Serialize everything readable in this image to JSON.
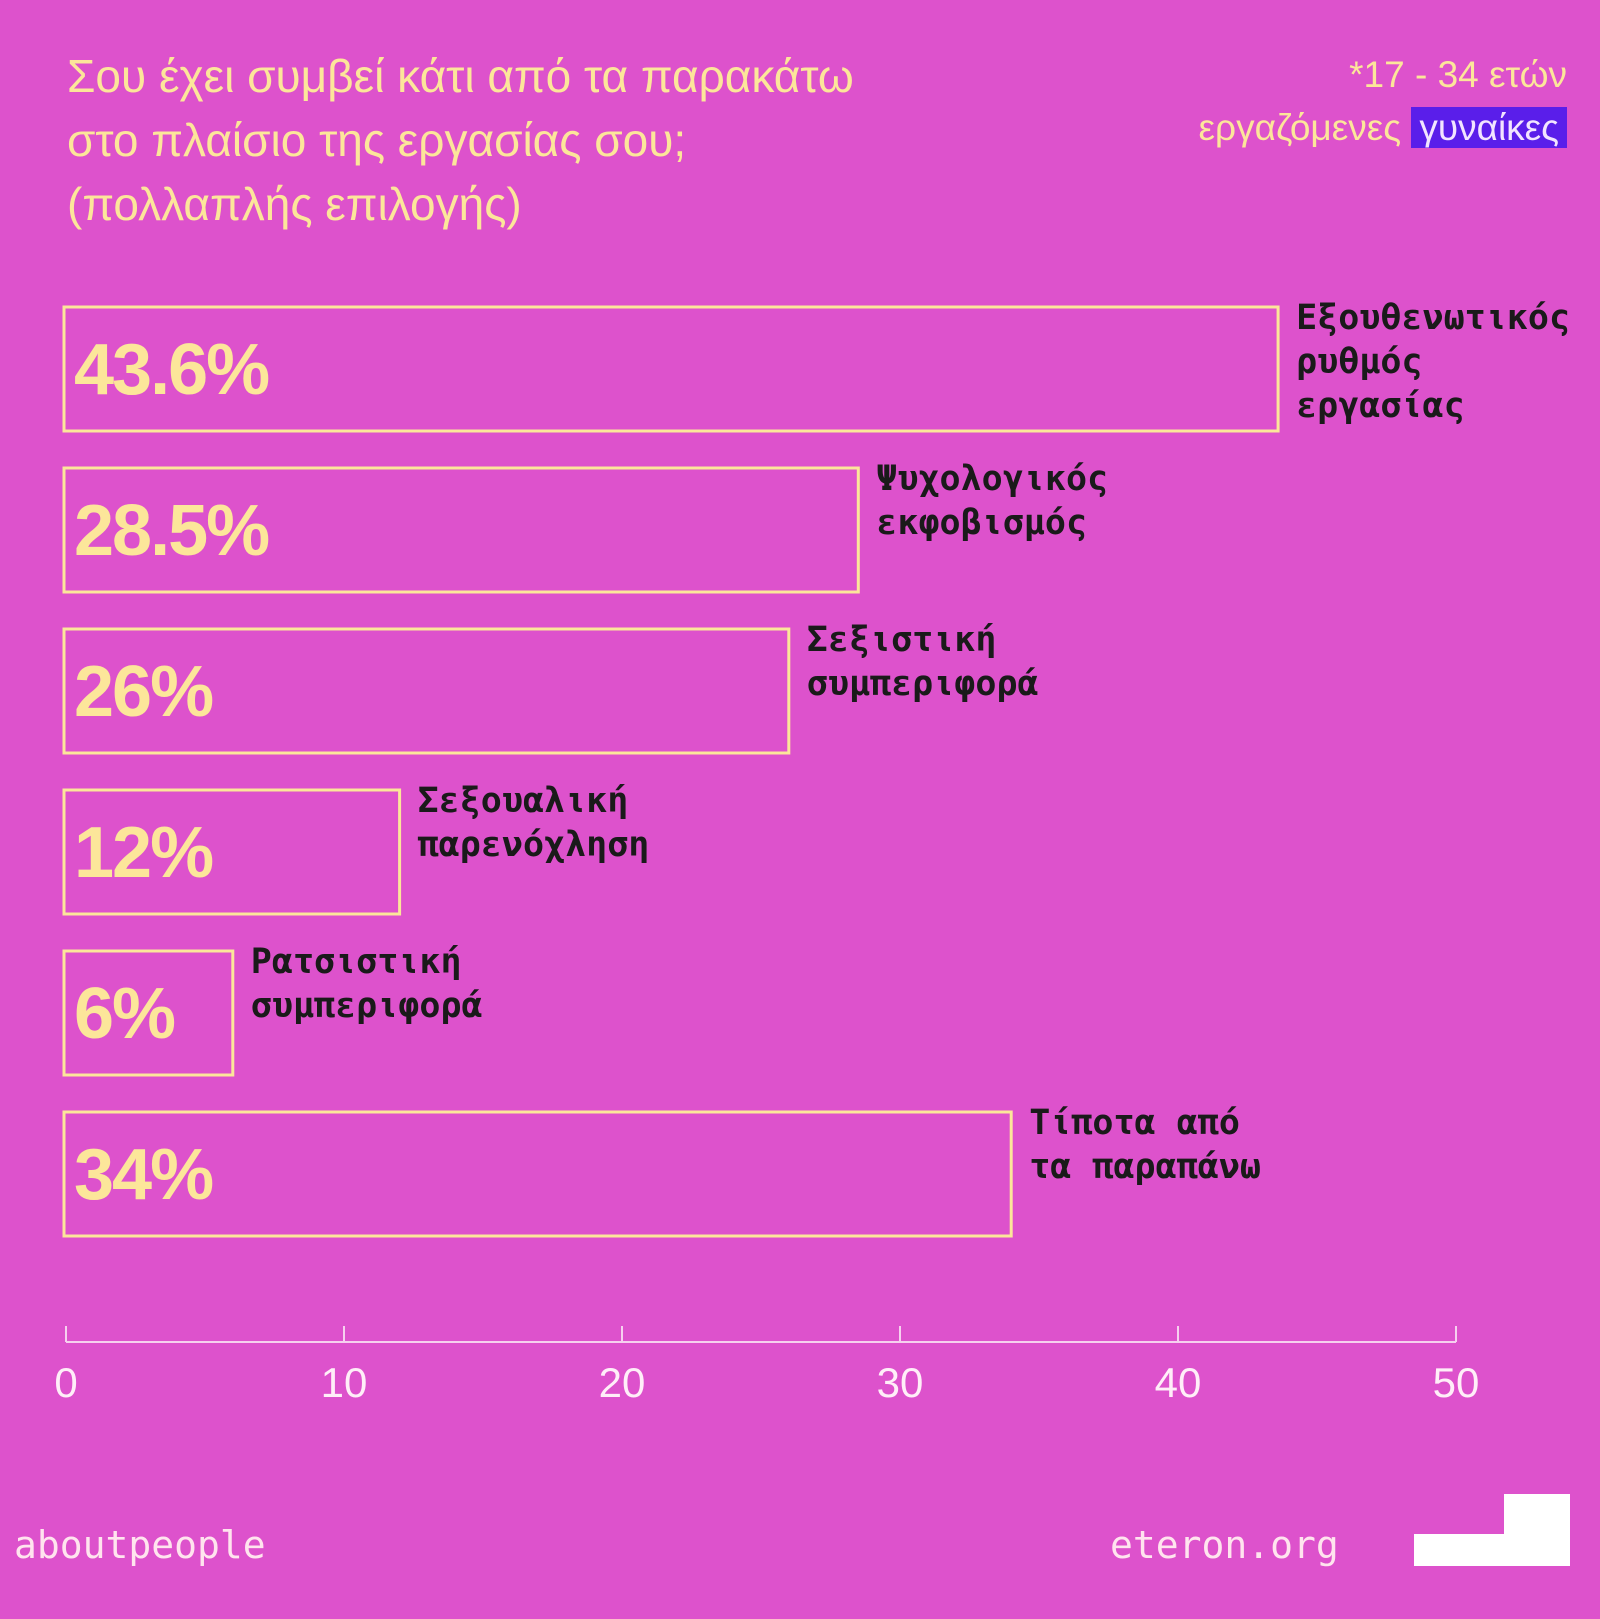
{
  "header": {
    "title_lines": [
      "Σου έχει συμβεί κάτι από τα παρακάτω",
      "στο πλαίσιο της εργασίας σου;",
      "(πολλαπλής επιλογής)"
    ],
    "note_line1": "*17 - 34 ετών",
    "note_line2_plain": "εργαζόμενες",
    "note_line2_highlight": "γυναίκες"
  },
  "chart_data": {
    "type": "bar",
    "orientation": "horizontal",
    "categories": [
      [
        "Εξουθενωτικός",
        "ρυθμός",
        "εργασίας"
      ],
      [
        "Ψυχολογικός",
        "εκφοβισμός"
      ],
      [
        "Σεξιστική",
        "συμπεριφορά"
      ],
      [
        "Σεξουαλική",
        "παρενόχληση"
      ],
      [
        "Ρατσιστική",
        "συμπεριφορά"
      ],
      [
        "Τίποτα από",
        "τα παραπάνω"
      ]
    ],
    "values": [
      43.6,
      28.5,
      26,
      12,
      6,
      34
    ],
    "value_labels": [
      "43.6%",
      "28.5%",
      "26%",
      "12%",
      "6%",
      "34%"
    ],
    "xlim": [
      0,
      50
    ],
    "xticks": [
      0,
      10,
      20,
      30,
      40,
      50
    ],
    "grid": false,
    "colors": {
      "background": "#dd52cc",
      "bar_outline": "#fce69a",
      "value_text": "#fce69a",
      "category_text": "#1a1a1a",
      "axis": "#f6d0ef",
      "tick_text": "#ffeef8"
    }
  },
  "footer": {
    "left": "aboutpeople",
    "right": "eteron.org",
    "logo_icon": "eteron-logo-icon"
  }
}
